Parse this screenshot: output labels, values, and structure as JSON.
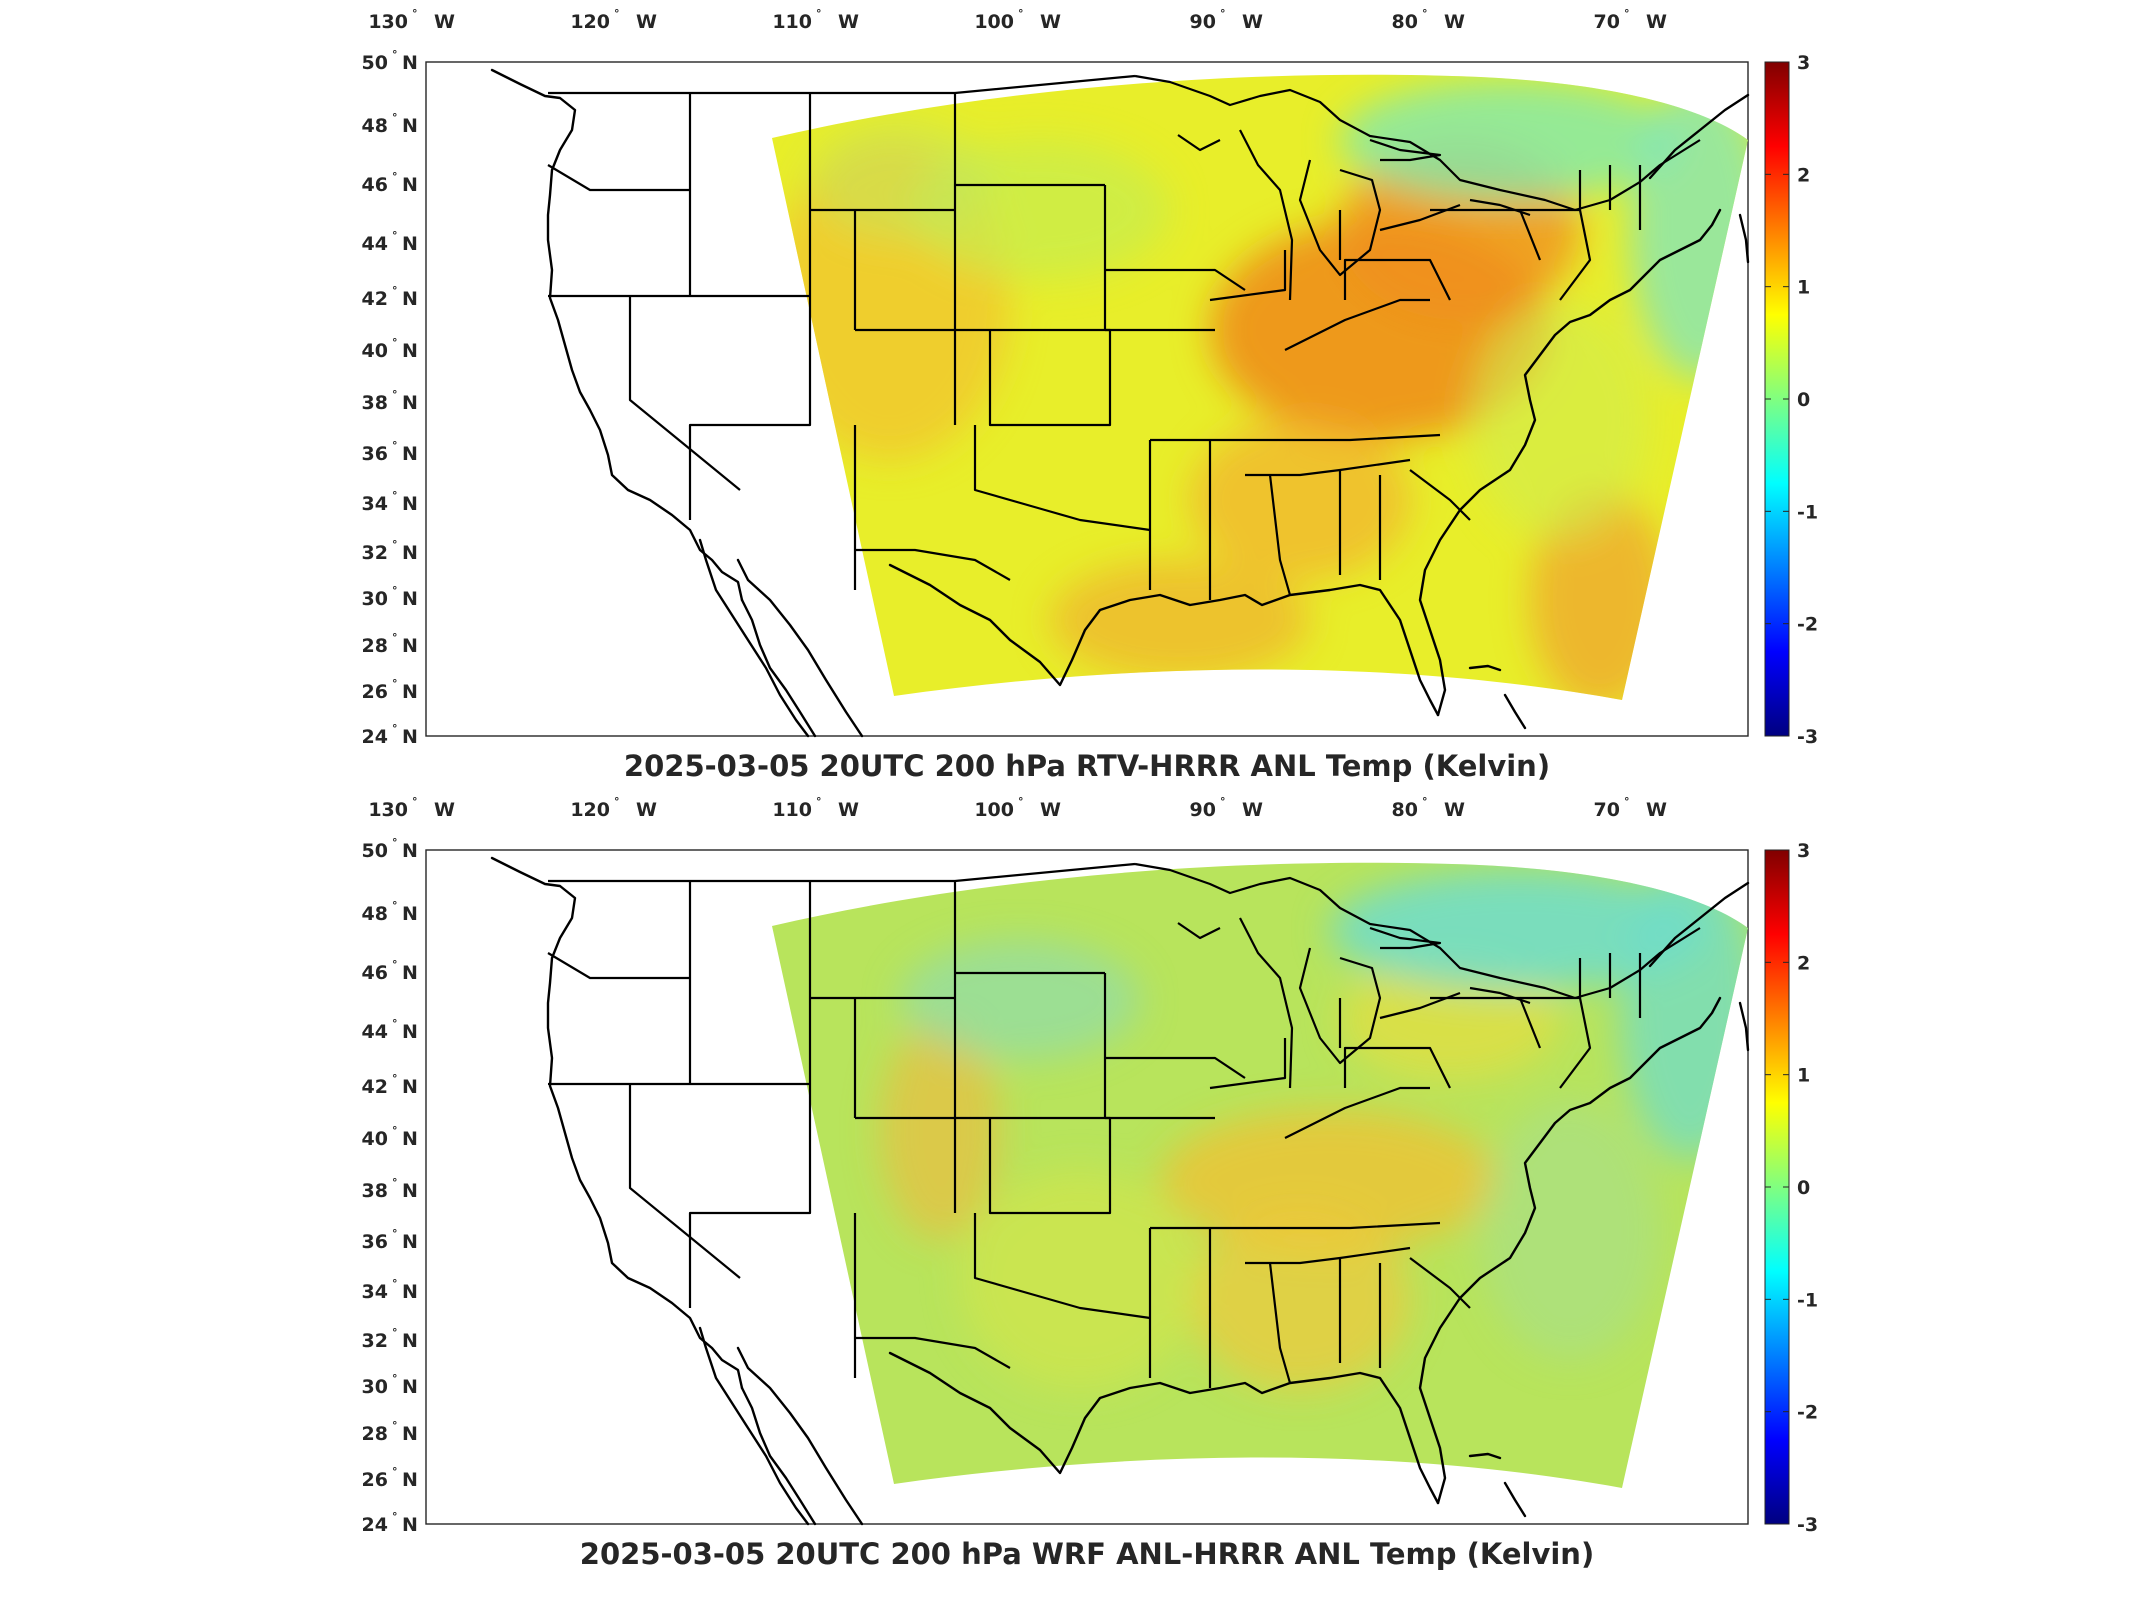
{
  "panels": [
    {
      "id": "top",
      "title": "2025-03-05 20UTC 200 hPa RTV-HRRR ANL Temp (Kelvin)",
      "anomaly": "warm"
    },
    {
      "id": "bottom",
      "title": "2025-03-05 20UTC 200 hPa WRF ANL-HRRR ANL Temp (Kelvin)",
      "anomaly": "neutral"
    }
  ],
  "lon_labels": [
    {
      "value": 130,
      "text": "130",
      "hem": "W"
    },
    {
      "value": 120,
      "text": "120",
      "hem": "W"
    },
    {
      "value": 110,
      "text": "110",
      "hem": "W"
    },
    {
      "value": 100,
      "text": "100",
      "hem": "W"
    },
    {
      "value": 90,
      "text": "90",
      "hem": "W"
    },
    {
      "value": 80,
      "text": "80",
      "hem": "W"
    },
    {
      "value": 70,
      "text": "70",
      "hem": "W"
    }
  ],
  "lat_labels": [
    {
      "value": 50,
      "text": "50",
      "hem": "N"
    },
    {
      "value": 48,
      "text": "48",
      "hem": "N"
    },
    {
      "value": 46,
      "text": "46",
      "hem": "N"
    },
    {
      "value": 44,
      "text": "44",
      "hem": "N"
    },
    {
      "value": 42,
      "text": "42",
      "hem": "N"
    },
    {
      "value": 40,
      "text": "40",
      "hem": "N"
    },
    {
      "value": 38,
      "text": "38",
      "hem": "N"
    },
    {
      "value": 36,
      "text": "36",
      "hem": "N"
    },
    {
      "value": 34,
      "text": "34",
      "hem": "N"
    },
    {
      "value": 32,
      "text": "32",
      "hem": "N"
    },
    {
      "value": 30,
      "text": "30",
      "hem": "N"
    },
    {
      "value": 28,
      "text": "28",
      "hem": "N"
    },
    {
      "value": 26,
      "text": "26",
      "hem": "N"
    },
    {
      "value": 24,
      "text": "24",
      "hem": "N"
    }
  ],
  "colorbar": {
    "min": -3,
    "max": 3,
    "ticks": [
      "3",
      "2",
      "1",
      "0",
      "-1",
      "-2",
      "-3"
    ],
    "colors": [
      "#000080",
      "#0000ff",
      "#0080ff",
      "#00ffff",
      "#80ff80",
      "#ffff00",
      "#ff8000",
      "#ff0000",
      "#800000"
    ]
  },
  "degree_symbol": "°"
}
